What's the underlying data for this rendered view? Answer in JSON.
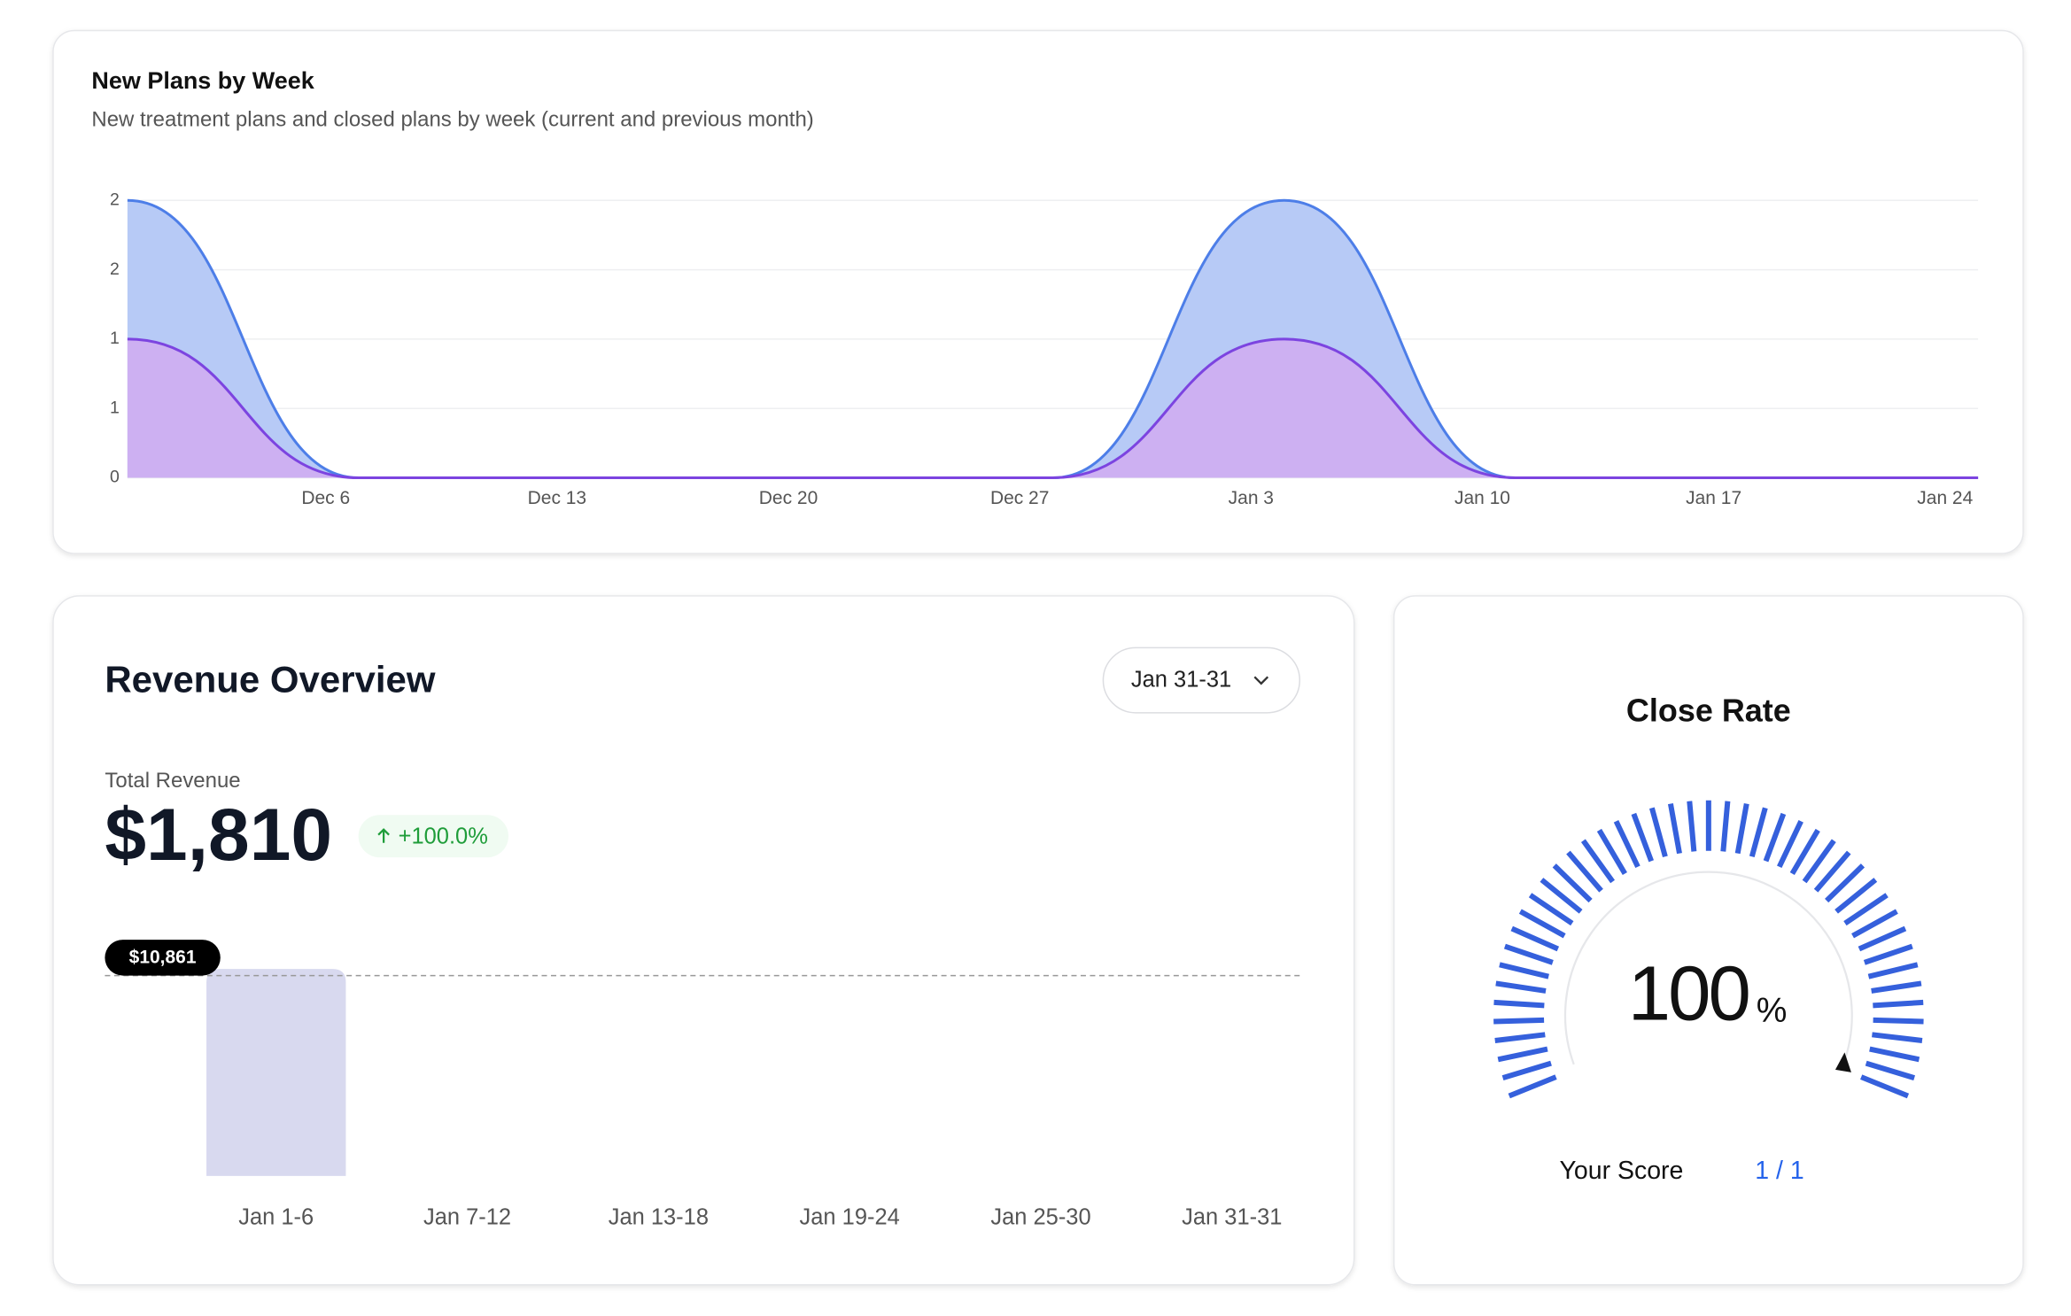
{
  "chart_data": [
    {
      "type": "area",
      "title": "New Plans by Week",
      "subtitle": "New treatment plans and closed plans by week (current and previous month)",
      "x": [
        "Nov 30",
        "Dec 7",
        "Dec 14",
        "Dec 21",
        "Dec 28",
        "Jan 4",
        "Jan 11",
        "Jan 18",
        "Jan 25"
      ],
      "xlim": [
        "Nov 30",
        "Jan 25"
      ],
      "xticks": [
        "Dec 6",
        "Dec 13",
        "Dec 20",
        "Dec 27",
        "Jan 3",
        "Jan 10",
        "Jan 17",
        "Jan 24"
      ],
      "ylim": [
        0,
        2
      ],
      "yticks": [
        0,
        {
          "value": 0.5,
          "label": "1"
        },
        1,
        {
          "value": 1.5,
          "label": "2"
        },
        2
      ],
      "grid": true,
      "series": [
        {
          "color": "#4d7ee8",
          "fill": "#b7caf6",
          "values": [
            2,
            0,
            0,
            0,
            0,
            2,
            0,
            0,
            0
          ]
        },
        {
          "color": "#7c44e0",
          "fill": "#cdb0f2",
          "values": [
            1,
            0,
            0,
            0,
            0,
            1,
            0,
            0,
            0
          ]
        }
      ]
    },
    {
      "type": "bar",
      "title": "Revenue Overview",
      "range_selector": "Jan 31-31",
      "total_label": "Total Revenue",
      "total": "$1,810",
      "change": "+100.0%",
      "categories": [
        "Jan 1-6",
        "Jan 7-12",
        "Jan 13-18",
        "Jan 19-24",
        "Jan 25-30",
        "Jan 31-31"
      ],
      "values": [
        10861,
        0,
        0,
        0,
        0,
        0
      ],
      "value_labels": [
        "$10,861",
        null,
        null,
        null,
        null,
        null
      ],
      "color": "#d8d9ef"
    },
    {
      "type": "gauge",
      "title": "Close Rate",
      "value": 100,
      "unit": "%",
      "gaugelim": [
        0,
        100
      ],
      "color": "#3560dc",
      "score_label": "Your Score",
      "score": "1 / 1"
    }
  ]
}
